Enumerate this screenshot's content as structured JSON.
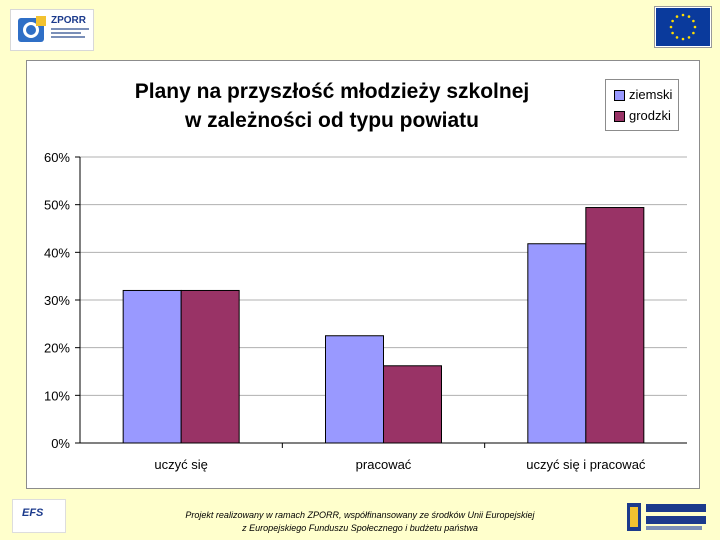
{
  "header": {
    "left_logo": {
      "text": "ZPORR",
      "icon": "zporr-logo-icon"
    },
    "right_logo": {
      "icon": "eu-flag-icon"
    }
  },
  "chart_data": {
    "type": "bar",
    "title_lines": [
      "Plany na przyszłość młodzieży szkolnej",
      "w zależności od typu powiatu"
    ],
    "categories": [
      "uczyć się",
      "pracować",
      "uczyć się i pracować"
    ],
    "series": [
      {
        "name": "ziemski",
        "color": "#9999ff",
        "values": [
          0.32,
          0.225,
          0.418
        ]
      },
      {
        "name": "grodzki",
        "color": "#993366",
        "values": [
          0.32,
          0.162,
          0.494
        ]
      }
    ],
    "ylim": [
      0,
      0.6
    ],
    "yticks": [
      "0%",
      "10%",
      "20%",
      "30%",
      "40%",
      "50%",
      "60%"
    ],
    "grid": true,
    "legend_position": "top-right"
  },
  "footer": {
    "line1": "Projekt realizowany w ramach ZPORR, współfinansowany ze środków Unii Europejskiej",
    "line2": "z Europejskiego Funduszu Społecznego i budżetu państwa",
    "left_logo_text": "EFS",
    "right_logo_icon": "european-social-fund-logo-icon"
  }
}
